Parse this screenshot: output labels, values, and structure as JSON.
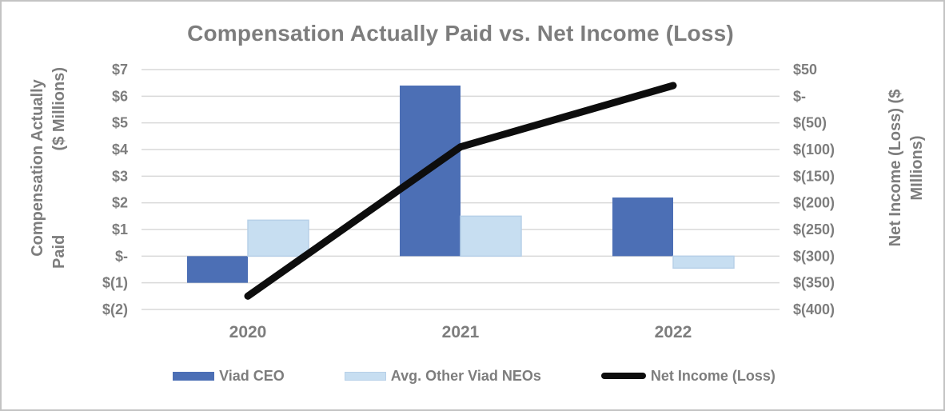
{
  "chart_data": {
    "type": "combo (bar + line)",
    "title": "Compensation Actually Paid vs. Net Income (Loss)",
    "categories": [
      "2020",
      "2021",
      "2022"
    ],
    "series": [
      {
        "name": "Viad CEO",
        "type": "bar",
        "axis": "left",
        "color": "#4c6fb5",
        "values": [
          -1.0,
          6.4,
          2.2
        ]
      },
      {
        "name": "Avg. Other Viad NEOs",
        "type": "bar",
        "axis": "left",
        "color": "#c7def1",
        "border_color": "#b7d0e8",
        "values": [
          1.35,
          1.5,
          -0.45
        ]
      },
      {
        "name": "Net Income (Loss)",
        "type": "line",
        "axis": "right",
        "color": "#0d0d0d",
        "values": [
          -375,
          -95,
          20
        ]
      }
    ],
    "left_axis": {
      "label": "Compensation Actually Paid ($ Millions)",
      "title_line1": "Compensation Actually",
      "title_line2_start": "Paid",
      "title_line2_end": "($ Millions)",
      "ticks": [
        "$7",
        "$6",
        "$5",
        "$4",
        "$3",
        "$2",
        "$1",
        "$-",
        "$(1)",
        "$(2)"
      ],
      "tick_values": [
        7,
        6,
        5,
        4,
        3,
        2,
        1,
        0,
        -1,
        -2
      ],
      "range": [
        -2,
        7
      ]
    },
    "right_axis": {
      "label": "Net Income (Loss) ($ MIllions)",
      "title_line1": "Net Income (Loss) ($",
      "title_line2": "MIllions)",
      "ticks": [
        "$50",
        "$-",
        "$(50)",
        "$(100)",
        "$(150)",
        "$(200)",
        "$(250)",
        "$(300)",
        "$(350)",
        "$(400)"
      ],
      "tick_values": [
        50,
        0,
        -50,
        -100,
        -150,
        -200,
        -250,
        -300,
        -350,
        -400
      ],
      "range": [
        -400,
        50
      ]
    },
    "grid": true,
    "legend_position": "bottom",
    "colors": {
      "text": "#7d7d7d",
      "gridline": "#d9d9d9",
      "background": "#ffffff",
      "frame_border": "#c3c3c3"
    }
  }
}
